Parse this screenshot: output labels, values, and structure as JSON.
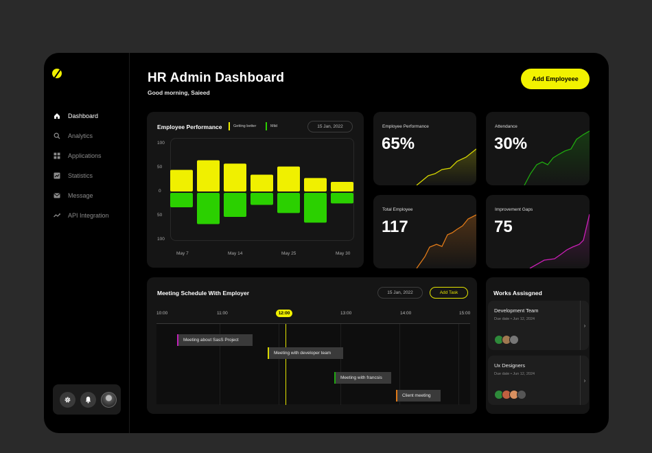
{
  "app": {
    "title": "HR Admin Dashboard",
    "greeting": "Good morning, Saieed"
  },
  "header": {
    "add_employee_label": "Add Employeee"
  },
  "sidebar": {
    "items": [
      {
        "label": "Dashboard",
        "icon": "home-icon",
        "active": true
      },
      {
        "label": "Analytics",
        "icon": "search-icon"
      },
      {
        "label": "Applications",
        "icon": "grid-icon"
      },
      {
        "label": "Statistics",
        "icon": "chart-icon"
      },
      {
        "label": "Message",
        "icon": "mail-icon"
      },
      {
        "label": "API Integration",
        "icon": "link-icon"
      }
    ],
    "bottom": [
      "gear-icon",
      "bell-icon",
      "avatar"
    ]
  },
  "performance": {
    "title": "Employee Performance",
    "legend": [
      "Getting better",
      "Mild"
    ],
    "date": "15 Jan, 2022",
    "y_ticks": [
      "100",
      "50",
      "0",
      "50",
      "100"
    ],
    "x_ticks": [
      "May 7",
      "May 14",
      "May 25",
      "May 30"
    ]
  },
  "chart_data": {
    "type": "bar",
    "series": [
      {
        "name": "Getting better",
        "values": [
          45,
          65,
          58,
          35,
          52,
          28,
          20
        ]
      },
      {
        "name": "Mild",
        "values": [
          -30,
          -65,
          -50,
          -25,
          -42,
          -62,
          -22
        ]
      }
    ],
    "ylim": [
      -100,
      100
    ],
    "colors": [
      "#f0f000",
      "#2bd000"
    ]
  },
  "stats": [
    {
      "label": "Employee Performance",
      "value": "65%",
      "color": "#d8d800"
    },
    {
      "label": "Attendance",
      "value": "30%",
      "color": "#1fa80f"
    },
    {
      "label": "Total Employee",
      "value": "117",
      "color": "#e07a18"
    },
    {
      "label": "Improvement Gaps",
      "value": "75",
      "color": "#cc1fb8"
    }
  ],
  "meeting": {
    "title": "Meeting Schedule With Employer",
    "date": "15 Jan, 2022",
    "add_task_label": "Add Task",
    "times": [
      "10:00",
      "11:00",
      "12:00",
      "13:00",
      "14:00",
      "15:00"
    ],
    "current_time": "12:00",
    "tasks": [
      {
        "label": "Meeting about SasS Project",
        "color": "#c020b8"
      },
      {
        "label": "Meeting with developer team",
        "color": "#d8d800"
      },
      {
        "label": "Meeting with francsis",
        "color": "#1fa80f"
      },
      {
        "label": "Client meeting",
        "color": "#e07a18"
      }
    ]
  },
  "works": {
    "title": "Works Assisgned",
    "items": [
      {
        "title": "Development Team",
        "due": "Due date   •   Jun 12, 2024"
      },
      {
        "title": "Ux Designers",
        "due": "Due date   •   Jun 12, 2024"
      }
    ],
    "arrow": "›"
  }
}
